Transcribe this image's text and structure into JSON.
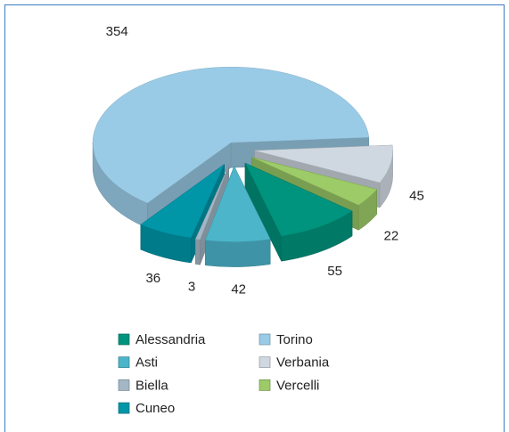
{
  "chart_data": {
    "type": "pie3d",
    "categories": [
      "Alessandria",
      "Asti",
      "Biella",
      "Cuneo",
      "Torino",
      "Verbania",
      "Vercelli"
    ],
    "values": [
      55,
      42,
      3,
      36,
      354,
      45,
      22
    ],
    "colors": [
      "#00937d",
      "#4cb5ca",
      "#a3b7c6",
      "#0096a8",
      "#9acbe6",
      "#cfd8e0",
      "#9ccb68"
    ],
    "legend": "bottom"
  }
}
